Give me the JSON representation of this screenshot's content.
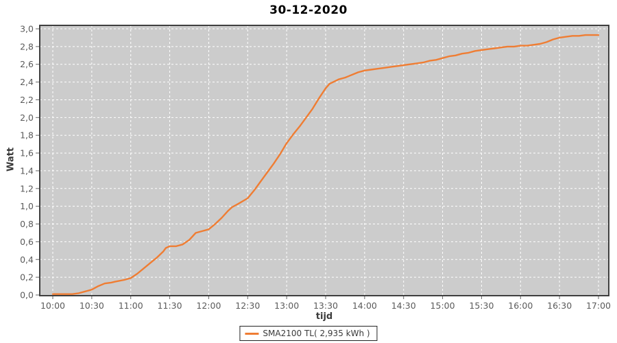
{
  "chart": {
    "title": "30-12-2020"
  },
  "colors": {
    "series_line": "#ef7d33",
    "plot_background": "#cccccc",
    "gridline": "#ffffff",
    "frame": "#3f3f3f",
    "tick_mark": "#666666",
    "tick_label": "#5a5a5a",
    "outer_background": "#ffffff"
  },
  "chart_data": {
    "type": "line",
    "title": "30-12-2020",
    "xlabel": "tijd",
    "ylabel": "Watt",
    "ylim": [
      0.0,
      3.0
    ],
    "y_tick_step": 0.2,
    "x_range": [
      "10:00",
      "17:00"
    ],
    "x_tick_interval_minutes": 30,
    "grid": "on",
    "legend_position": "bottom-center",
    "x_ticks": [
      "10:00",
      "10:30",
      "11:00",
      "11:30",
      "12:00",
      "12:30",
      "13:00",
      "13:30",
      "14:00",
      "14:30",
      "15:00",
      "15:30",
      "16:00",
      "16:30",
      "17:00"
    ],
    "y_ticks": [
      "0,0",
      "0,2",
      "0,4",
      "0,6",
      "0,8",
      "1,0",
      "1,2",
      "1,4",
      "1,6",
      "1,8",
      "2,0",
      "2,2",
      "2,4",
      "2,6",
      "2,8",
      "3,0"
    ],
    "series": [
      {
        "name": "SMA2100 TL( 2,935 kWh )",
        "color": "#ef7d33",
        "x_unit": "minutes_after_10:00",
        "y_unit": "kW (axis labeled Watt)",
        "points": [
          [
            0,
            0.01
          ],
          [
            5,
            0.01
          ],
          [
            10,
            0.01
          ],
          [
            15,
            0.01
          ],
          [
            20,
            0.02
          ],
          [
            25,
            0.04
          ],
          [
            30,
            0.06
          ],
          [
            35,
            0.1
          ],
          [
            40,
            0.13
          ],
          [
            45,
            0.14
          ],
          [
            48,
            0.15
          ],
          [
            55,
            0.17
          ],
          [
            60,
            0.19
          ],
          [
            65,
            0.24
          ],
          [
            70,
            0.3
          ],
          [
            75,
            0.36
          ],
          [
            80,
            0.42
          ],
          [
            85,
            0.49
          ],
          [
            87,
            0.53
          ],
          [
            90,
            0.55
          ],
          [
            95,
            0.55
          ],
          [
            100,
            0.57
          ],
          [
            105,
            0.62
          ],
          [
            110,
            0.7
          ],
          [
            115,
            0.72
          ],
          [
            120,
            0.74
          ],
          [
            125,
            0.8
          ],
          [
            130,
            0.87
          ],
          [
            135,
            0.95
          ],
          [
            138,
            0.99
          ],
          [
            143,
            1.03
          ],
          [
            150,
            1.09
          ],
          [
            155,
            1.18
          ],
          [
            160,
            1.28
          ],
          [
            165,
            1.38
          ],
          [
            170,
            1.48
          ],
          [
            175,
            1.59
          ],
          [
            180,
            1.71
          ],
          [
            185,
            1.81
          ],
          [
            190,
            1.9
          ],
          [
            195,
            2.0
          ],
          [
            200,
            2.1
          ],
          [
            205,
            2.22
          ],
          [
            210,
            2.33
          ],
          [
            213,
            2.38
          ],
          [
            220,
            2.43
          ],
          [
            225,
            2.45
          ],
          [
            230,
            2.48
          ],
          [
            235,
            2.51
          ],
          [
            240,
            2.53
          ],
          [
            245,
            2.54
          ],
          [
            250,
            2.55
          ],
          [
            255,
            2.56
          ],
          [
            260,
            2.57
          ],
          [
            265,
            2.58
          ],
          [
            270,
            2.59
          ],
          [
            275,
            2.6
          ],
          [
            280,
            2.61
          ],
          [
            285,
            2.62
          ],
          [
            290,
            2.64
          ],
          [
            295,
            2.65
          ],
          [
            300,
            2.67
          ],
          [
            305,
            2.69
          ],
          [
            310,
            2.7
          ],
          [
            315,
            2.72
          ],
          [
            320,
            2.73
          ],
          [
            325,
            2.75
          ],
          [
            330,
            2.76
          ],
          [
            335,
            2.77
          ],
          [
            340,
            2.78
          ],
          [
            345,
            2.79
          ],
          [
            350,
            2.8
          ],
          [
            355,
            2.8
          ],
          [
            360,
            2.81
          ],
          [
            365,
            2.81
          ],
          [
            370,
            2.82
          ],
          [
            375,
            2.83
          ],
          [
            380,
            2.85
          ],
          [
            385,
            2.88
          ],
          [
            390,
            2.9
          ],
          [
            395,
            2.91
          ],
          [
            400,
            2.92
          ],
          [
            405,
            2.92
          ],
          [
            410,
            2.93
          ],
          [
            415,
            2.93
          ],
          [
            420,
            2.93
          ]
        ]
      }
    ]
  }
}
